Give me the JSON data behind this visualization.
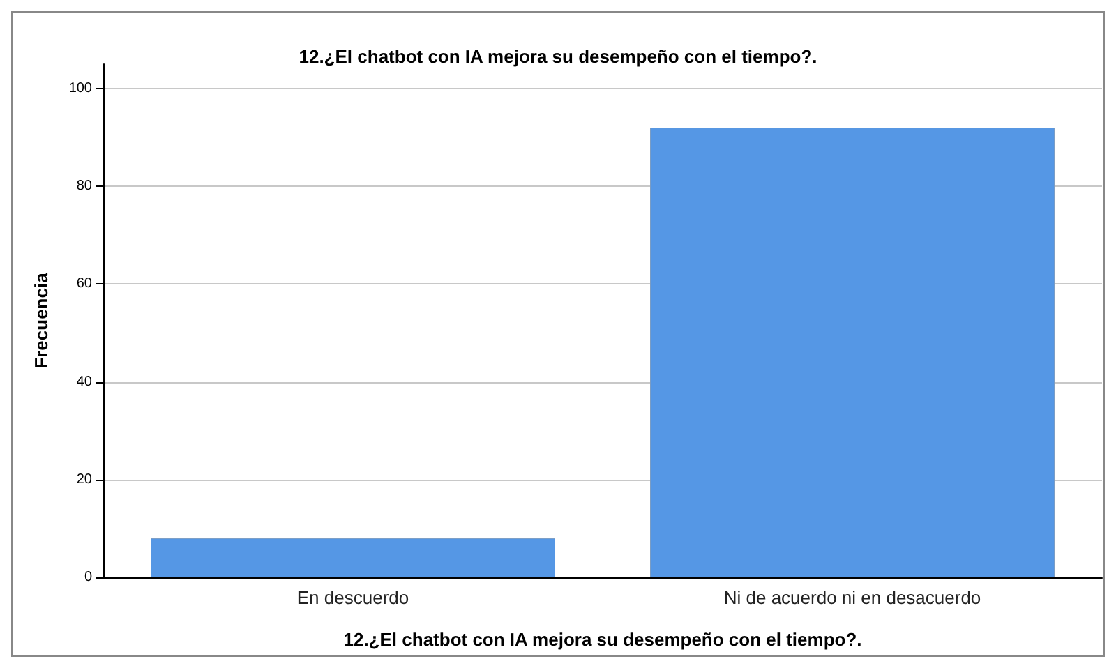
{
  "chart_data": {
    "type": "bar",
    "title": "12.¿El chatbot con IA mejora su desempeño con el tiempo?.",
    "xlabel": "12.¿El chatbot con IA mejora su desempeño con el tiempo?.",
    "ylabel": "Frecuencia",
    "categories": [
      "En descuerdo",
      "Ni de acuerdo ni en desacuerdo"
    ],
    "values": [
      8,
      92
    ],
    "color": "#5597e5",
    "ylim": [
      0,
      105
    ],
    "yticks": [
      0,
      20,
      40,
      60,
      80,
      100
    ],
    "grid": "y"
  }
}
